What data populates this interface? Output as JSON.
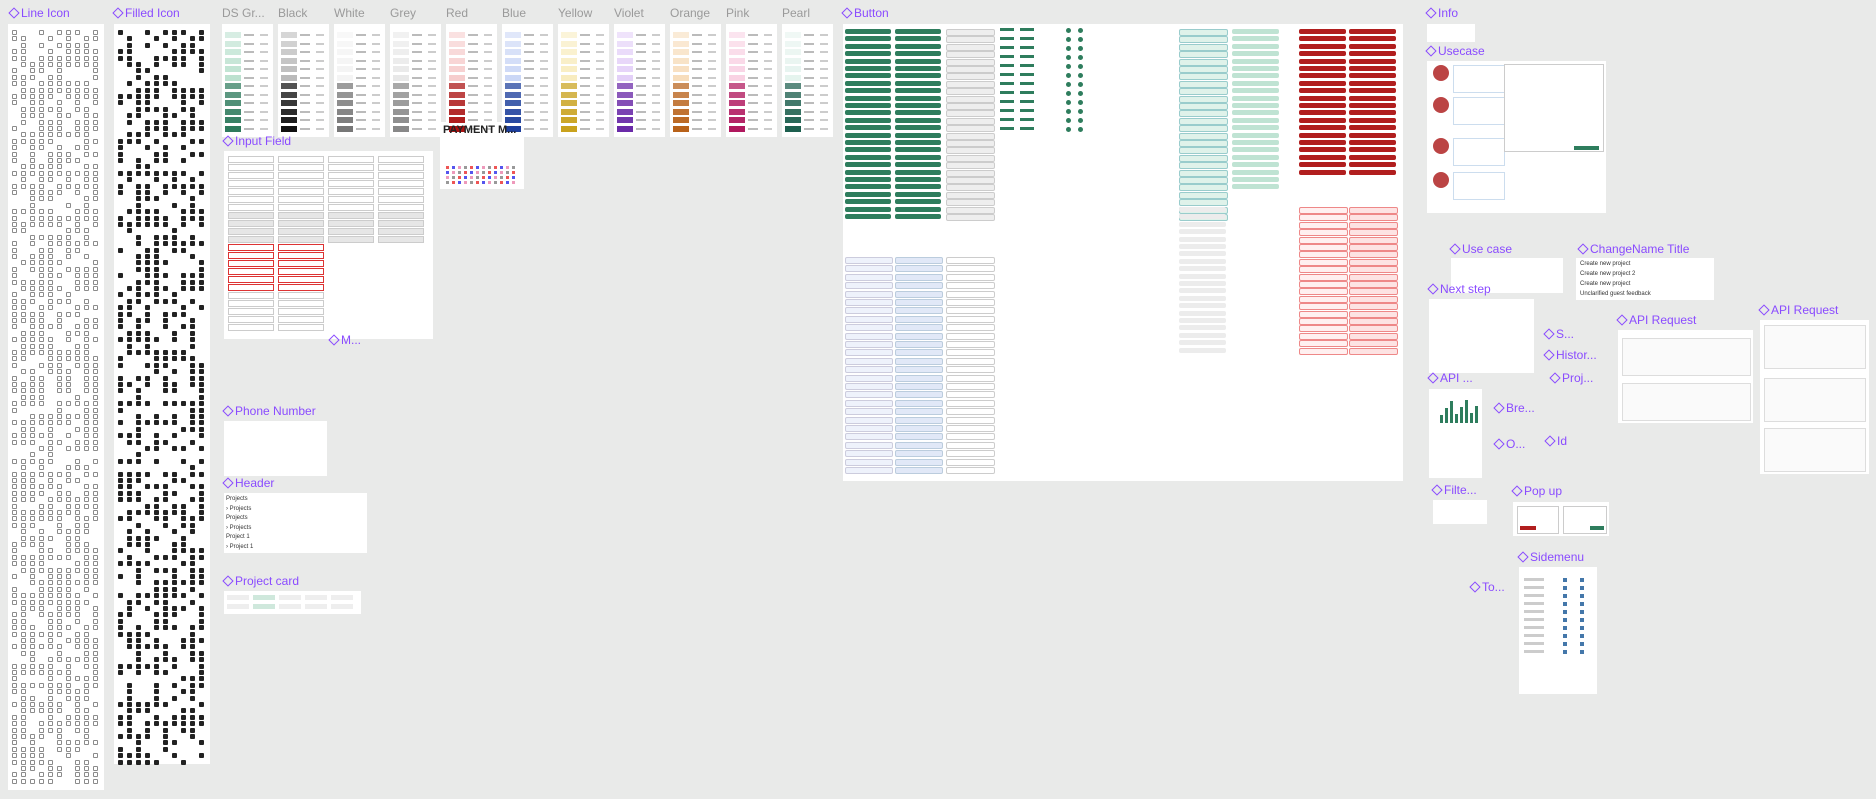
{
  "frames": [
    {
      "label": "Line Icon"
    },
    {
      "label": "Filled Icon"
    },
    {
      "label": "Button"
    },
    {
      "label": "Info"
    },
    {
      "label": "Usecase"
    },
    {
      "label": "Input Field"
    },
    {
      "label": "M..."
    },
    {
      "label": "Phone Number"
    },
    {
      "label": "Header"
    },
    {
      "label": "Project card"
    },
    {
      "label": "Use case"
    },
    {
      "label": "ChangeName Title"
    },
    {
      "label": "Next step"
    },
    {
      "label": "API Request"
    },
    {
      "label": "API Request"
    },
    {
      "label": "S..."
    },
    {
      "label": "Histor..."
    },
    {
      "label": "API ..."
    },
    {
      "label": "Proj..."
    },
    {
      "label": "Bre..."
    },
    {
      "label": "O..."
    },
    {
      "label": "Id"
    },
    {
      "label": "Filte..."
    },
    {
      "label": "Pop up"
    },
    {
      "label": "Sidemenu"
    },
    {
      "label": "To..."
    }
  ],
  "color_labels": [
    "DS Gr...",
    "Black",
    "White",
    "Grey",
    "Red",
    "Blue",
    "Yellow",
    "Violet",
    "Orange",
    "Pink",
    "Pearl"
  ],
  "payment_label": "PAYMENT M...",
  "change_name_items": [
    "Create new project",
    "Create new project 2",
    "Create new project",
    "Unclarified guest feedback"
  ],
  "header_items": [
    "Projects",
    "› Projects",
    "Projects",
    "› Projects",
    "Project 1",
    "› Project 1"
  ]
}
